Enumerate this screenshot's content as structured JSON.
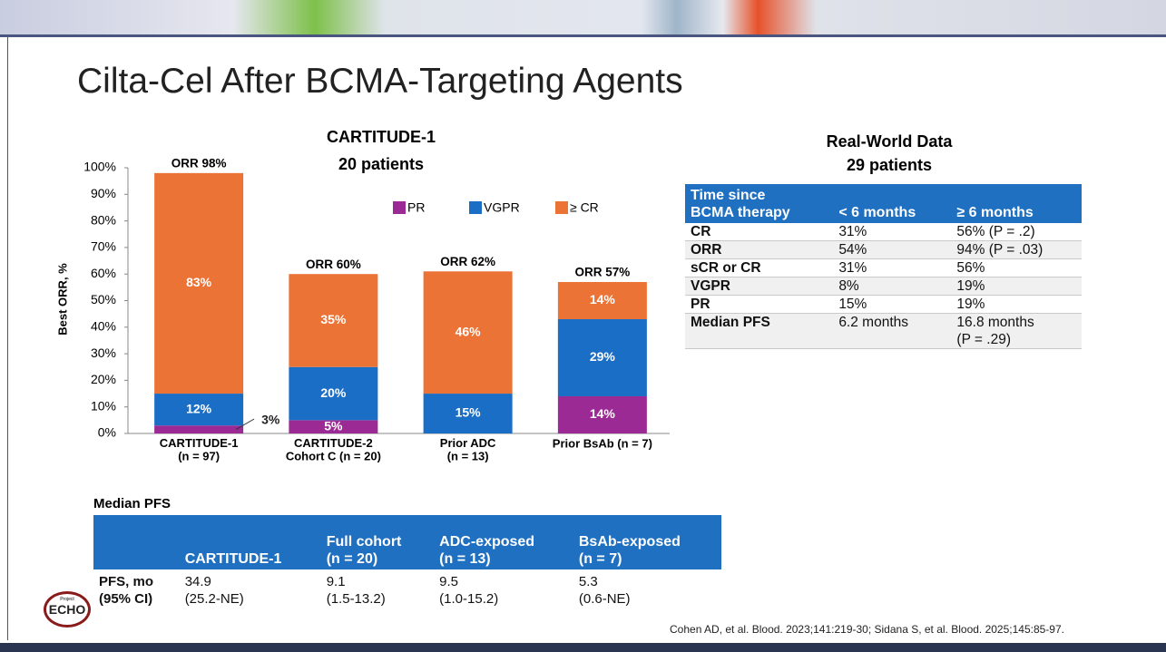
{
  "slide": {
    "title": "Cilta-Cel After BCMA-Targeting Agents",
    "logo": {
      "small": "Project",
      "text": "ECHO"
    },
    "citation": "Cohen AD, et al. Blood. 2023;141:219-30; Sidana S, et al. Blood. 2025;145:85-97."
  },
  "chart_data": {
    "type": "bar",
    "stacked": true,
    "title": "CARTITUDE-1",
    "subtitle": "20 patients",
    "y_label": "Best ORR, %",
    "categories": [
      "CARTITUDE-1\n(n = 97)",
      "CARTITUDE-2\nCohort C (n = 20)",
      "Prior ADC\n(n = 13)",
      "Prior BsAb (n = 7)"
    ],
    "series": [
      {
        "name": "PR",
        "color": "#9c2a94",
        "values": [
          3,
          5,
          null,
          14
        ],
        "value_labels": [
          "3%",
          "5%",
          null,
          "14%"
        ]
      },
      {
        "name": "VGPR",
        "color": "#1a6ec6",
        "values": [
          12,
          20,
          15,
          29
        ],
        "value_labels": [
          "12%",
          "20%",
          "15%",
          "29%"
        ]
      },
      {
        "name": "≥ CR",
        "color": "#eb7336",
        "values": [
          83,
          35,
          46,
          14
        ],
        "value_labels": [
          "83%",
          "35%",
          "46%",
          "14%"
        ]
      }
    ],
    "total_labels": [
      "ORR 98%",
      "ORR 60%",
      "ORR 62%",
      "ORR 57%"
    ],
    "ylim": [
      0,
      100
    ],
    "yticks": [
      {
        "value": 0,
        "label": "0%"
      },
      {
        "value": 10,
        "label": "10%"
      },
      {
        "value": 20,
        "label": "20%"
      },
      {
        "value": 30,
        "label": "30%"
      },
      {
        "value": 40,
        "label": "40%"
      },
      {
        "value": 50,
        "label": "50%"
      },
      {
        "value": 60,
        "label": "60%"
      },
      {
        "value": 70,
        "label": "70%"
      },
      {
        "value": 80,
        "label": "80%"
      },
      {
        "value": 90,
        "label": "90%"
      },
      {
        "value": 100,
        "label": "100%"
      }
    ],
    "grid": false,
    "legend": "top-right"
  },
  "real_world_table": {
    "title": "Real-World Data",
    "subtitle": "29 patients",
    "header": [
      "Time since\nBCMA therapy",
      "< 6 months",
      "≥ 6 months"
    ],
    "rows": [
      [
        "CR",
        "31%",
        "56% (P = .2)"
      ],
      [
        "ORR",
        "54%",
        "94% (P = .03)"
      ],
      [
        "sCR or CR",
        "31%",
        "56%"
      ],
      [
        "VGPR",
        "8%",
        "19%"
      ],
      [
        "PR",
        "15%",
        "19%"
      ],
      [
        "Median PFS",
        "6.2 months",
        "16.8 months\n(P = .29)"
      ]
    ]
  },
  "pfs_table": {
    "title": "Median PFS",
    "header": [
      "CARTITUDE-1",
      "Full cohort\n(n = 20)",
      "ADC-exposed\n(n = 13)",
      "BsAb-exposed\n(n = 7)"
    ],
    "rows": [
      [
        "PFS, mo\n(95% CI)",
        "34.9\n(25.2-NE)",
        "9.1\n(1.5-13.2)",
        "9.5\n(1.0-15.2)",
        "5.3\n(0.6-NE)"
      ]
    ]
  }
}
